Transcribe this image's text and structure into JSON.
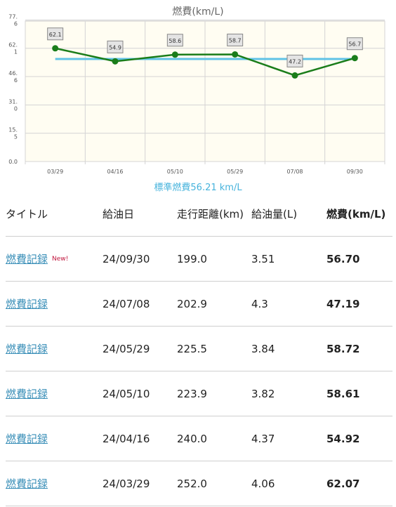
{
  "colors": {
    "plot_bg": "#fffdf2",
    "series_line": "#1a7d1a",
    "avg_line": "#5fc2e6",
    "grid": "#d4d4d4",
    "link": "#3a8fb8",
    "new_badge": "#c0143c",
    "avg_label": "#46b3dc"
  },
  "chart_data": {
    "type": "line",
    "title": "燃費(km/L)",
    "categories": [
      "03/29",
      "04/16",
      "05/10",
      "05/29",
      "07/08",
      "09/30"
    ],
    "series": [
      {
        "values": [
          62.07,
          54.92,
          58.61,
          58.72,
          47.19,
          56.7
        ]
      }
    ],
    "data_labels": [
      "62.1",
      "54.9",
      "58.6",
      "58.7",
      "47.2",
      "56.7"
    ],
    "reference_line": {
      "value": 56.21
    },
    "ylim": [
      0,
      77
    ],
    "yticks": [
      0,
      15.5,
      31.0,
      46.6,
      62.1,
      77.6
    ],
    "ytick_labels": [
      "0.0",
      "15.\n5",
      "31.\n0",
      "46.\n6",
      "62.\n1",
      "77.\n6"
    ],
    "grid": true
  },
  "average_label": "標準燃費56.21 km/L",
  "table": {
    "headers": [
      "タイトル",
      "給油日",
      "走行距離(km)",
      "給油量(L)",
      "燃費(km/L)"
    ],
    "new_label": "New!",
    "rows": [
      {
        "title": "燃費記録",
        "date": "24/09/30",
        "distance": "199.0",
        "fuel": "3.51",
        "efficiency": "56.70",
        "is_new": true
      },
      {
        "title": "燃費記録",
        "date": "24/07/08",
        "distance": "202.9",
        "fuel": "4.3",
        "efficiency": "47.19",
        "is_new": false
      },
      {
        "title": "燃費記録",
        "date": "24/05/29",
        "distance": "225.5",
        "fuel": "3.84",
        "efficiency": "58.72",
        "is_new": false
      },
      {
        "title": "燃費記録",
        "date": "24/05/10",
        "distance": "223.9",
        "fuel": "3.82",
        "efficiency": "58.61",
        "is_new": false
      },
      {
        "title": "燃費記録",
        "date": "24/04/16",
        "distance": "240.0",
        "fuel": "4.37",
        "efficiency": "54.92",
        "is_new": false
      },
      {
        "title": "燃費記録",
        "date": "24/03/29",
        "distance": "252.0",
        "fuel": "4.06",
        "efficiency": "62.07",
        "is_new": false
      }
    ]
  }
}
